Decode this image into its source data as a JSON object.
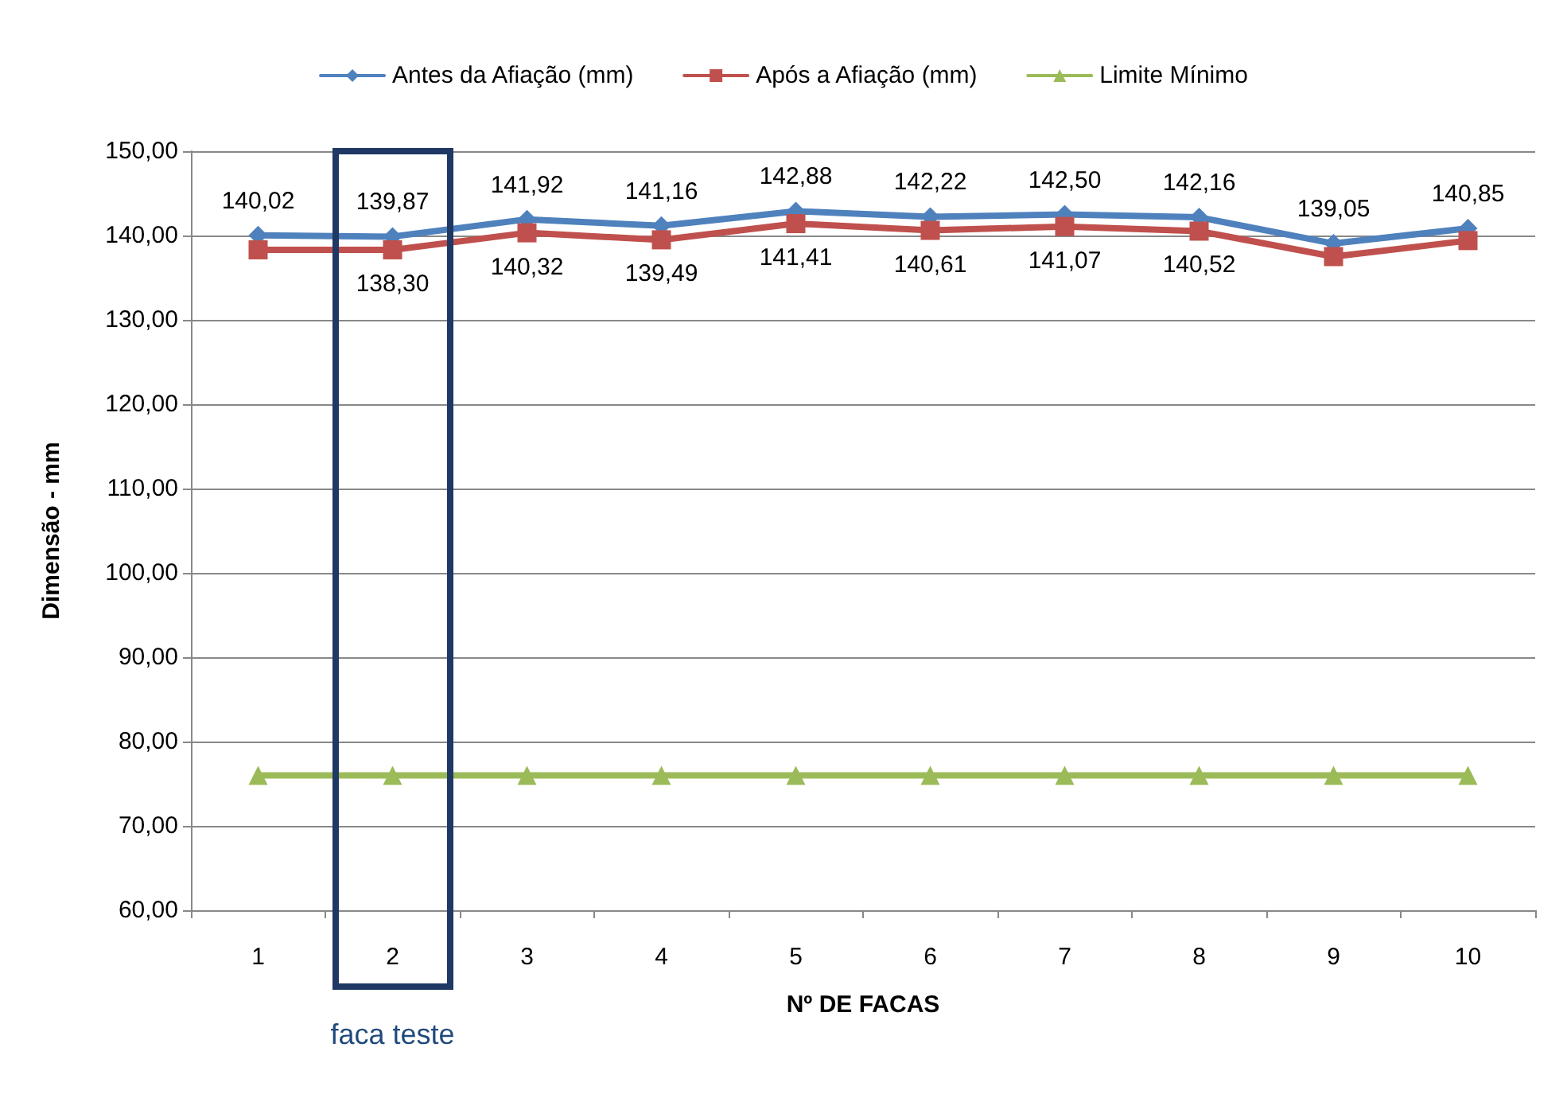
{
  "chart_data": {
    "type": "line",
    "xlabel": "Nº DE FACAS",
    "ylabel": "Dimensão - mm",
    "categories": [
      "1",
      "2",
      "3",
      "4",
      "5",
      "6",
      "7",
      "8",
      "9",
      "10"
    ],
    "series": [
      {
        "name": "Antes da Afiação (mm)",
        "color": "#4f81bd",
        "marker": "diamond",
        "values": [
          140.02,
          139.87,
          141.92,
          141.16,
          142.88,
          142.22,
          142.5,
          142.16,
          139.05,
          140.85
        ],
        "value_labels": [
          "140,02",
          "139,87",
          "141,92",
          "141,16",
          "142,88",
          "142,22",
          "142,50",
          "142,16",
          "139,05",
          "140,85"
        ]
      },
      {
        "name": "Após a Afiação (mm)",
        "color": "#c0504d",
        "marker": "square",
        "values": [
          138.3,
          138.3,
          140.32,
          139.49,
          141.41,
          140.61,
          141.07,
          140.52,
          137.5,
          139.4
        ],
        "value_labels": [
          null,
          "138,30",
          "140,32",
          "139,49",
          "141,41",
          "140,61",
          "141,07",
          "140,52",
          null,
          null
        ]
      },
      {
        "name": "Limite Mínimo",
        "color": "#9bbb59",
        "marker": "triangle",
        "values": [
          76,
          76,
          76,
          76,
          76,
          76,
          76,
          76,
          76,
          76
        ]
      }
    ],
    "ylim": [
      60,
      150
    ],
    "yticks": [
      {
        "value": 60,
        "label": "60,00"
      },
      {
        "value": 70,
        "label": "70,00"
      },
      {
        "value": 80,
        "label": "80,00"
      },
      {
        "value": 90,
        "label": "90,00"
      },
      {
        "value": 100,
        "label": "100,00"
      },
      {
        "value": 110,
        "label": "110,00"
      },
      {
        "value": 120,
        "label": "120,00"
      },
      {
        "value": 130,
        "label": "130,00"
      },
      {
        "value": 140,
        "label": "140,00"
      },
      {
        "value": 150,
        "label": "150,00"
      }
    ],
    "grid": "y",
    "legend": "top",
    "annotations": [
      "faca teste"
    ]
  }
}
